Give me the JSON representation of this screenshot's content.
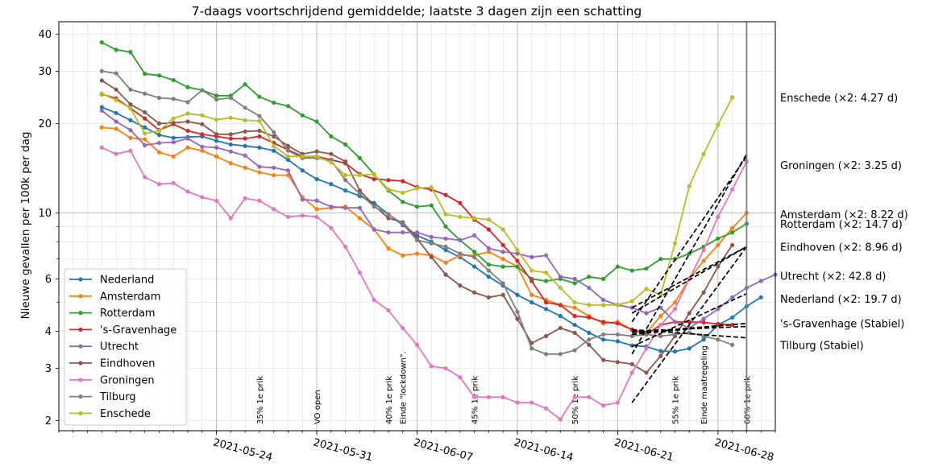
{
  "chart_data": {
    "type": "line",
    "title": "7-daags voortschrijdend gemiddelde; laatste 3 dagen zijn een schatting",
    "ylabel": "Nieuwe gevallen per 100k per dag",
    "xlabel": "",
    "yscale": "log",
    "ylim": [
      1.85,
      44
    ],
    "xlim": [
      "2021-05-13",
      "2021-07-02"
    ],
    "grid": true,
    "legend_position": "lower-left",
    "x_start": "2021-05-16",
    "y_ticks": [
      2,
      3,
      4,
      6,
      10,
      20,
      30,
      40
    ],
    "y_tick_labels": [
      "2",
      "3",
      "4",
      "6",
      "10",
      "20",
      "30",
      "40"
    ],
    "x_ticks": [
      "2021-05-24",
      "2021-05-31",
      "2021-06-07",
      "2021-06-14",
      "2021-06-21",
      "2021-06-28"
    ],
    "estimate_line": "2021-06-30",
    "series": [
      {
        "name": "Nederland",
        "color": "#1f77b4",
        "values": [
          22.7,
          21.7,
          20.5,
          19.4,
          18.3,
          17.9,
          18.0,
          18.1,
          17.5,
          17.0,
          16.8,
          16.6,
          16.2,
          15.1,
          13.9,
          13.0,
          12.5,
          11.9,
          11.4,
          10.8,
          9.9,
          9.1,
          8.4,
          8.0,
          7.5,
          7.1,
          6.6,
          6.1,
          5.7,
          5.3,
          5.0,
          4.75,
          4.5,
          4.2,
          3.95,
          3.75,
          3.7,
          3.58,
          3.55,
          3.43,
          3.42,
          3.5,
          3.75,
          4.2,
          4.45,
          4.85,
          5.2
        ]
      },
      {
        "name": "Amsterdam",
        "color": "#ff7f0e",
        "values": [
          19.4,
          19.2,
          17.9,
          17.7,
          16.0,
          15.5,
          16.6,
          16.2,
          15.5,
          14.7,
          14.2,
          13.7,
          13.4,
          13.4,
          11.3,
          10.3,
          10.4,
          10.5,
          9.6,
          8.8,
          7.6,
          7.2,
          7.3,
          7.2,
          6.8,
          7.2,
          7.2,
          7.4,
          7.0,
          6.6,
          5.3,
          5.1,
          4.9,
          4.8,
          4.5,
          4.25,
          4.3,
          4.05,
          3.95,
          4.5,
          5.0,
          6.0,
          6.9,
          7.8,
          8.9,
          10.0
        ]
      },
      {
        "name": "Rotterdam",
        "color": "#2ca02c",
        "values": [
          37.5,
          35.4,
          34.8,
          29.4,
          29.0,
          28.0,
          26.5,
          25.9,
          24.8,
          24.8,
          27.1,
          24.6,
          23.5,
          22.9,
          21.3,
          20.3,
          18.1,
          17.0,
          15.3,
          13.5,
          11.9,
          10.9,
          10.5,
          10.6,
          9.0,
          8.1,
          7.4,
          6.7,
          6.6,
          6.6,
          6.0,
          5.9,
          6.0,
          5.8,
          6.1,
          6.0,
          6.6,
          6.4,
          6.5,
          7.0,
          7.0,
          7.3,
          7.7,
          8.2,
          8.6,
          9.2
        ]
      },
      {
        "name": "'s-Gravenhage",
        "color": "#d62728",
        "values": [
          25.1,
          24.3,
          22.5,
          20.8,
          19.0,
          19.9,
          18.9,
          18.4,
          18.1,
          17.8,
          17.8,
          18.1,
          17.2,
          16.3,
          15.5,
          15.5,
          15.1,
          14.7,
          13.5,
          13.0,
          12.9,
          12.8,
          12.2,
          12.0,
          11.5,
          10.8,
          9.5,
          8.8,
          7.8,
          6.9,
          5.9,
          5.0,
          4.9,
          4.5,
          4.45,
          4.3,
          4.25,
          4.05,
          3.9,
          4.2,
          4.3,
          4.3,
          4.28,
          4.23,
          4.2
        ]
      },
      {
        "name": "Utrecht",
        "color": "#9467bd",
        "values": [
          22.1,
          20.3,
          19.0,
          16.9,
          17.2,
          17.3,
          17.8,
          16.7,
          16.6,
          16.1,
          15.6,
          14.3,
          14.2,
          13.9,
          11.1,
          11.0,
          10.5,
          10.4,
          10.4,
          8.8,
          8.6,
          8.6,
          8.6,
          8.3,
          8.2,
          8.1,
          8.4,
          7.6,
          7.4,
          7.3,
          7.1,
          7.2,
          6.1,
          6.0,
          5.6,
          5.1,
          4.9,
          4.8,
          4.6,
          4.8,
          4.3,
          4.1,
          4.4,
          4.75,
          5.2,
          5.6,
          5.9,
          6.2
        ]
      },
      {
        "name": "Eindhoven",
        "color": "#8c564b",
        "values": [
          27.9,
          26.0,
          23.2,
          21.8,
          20.0,
          20.1,
          20.3,
          19.9,
          18.4,
          18.4,
          18.8,
          18.9,
          18.1,
          16.8,
          15.8,
          16.1,
          15.8,
          14.9,
          11.9,
          10.6,
          9.6,
          9.3,
          8.2,
          7.1,
          6.2,
          5.7,
          5.4,
          5.2,
          5.3,
          4.4,
          3.65,
          3.85,
          4.1,
          3.95,
          3.6,
          3.2,
          3.15,
          3.1,
          2.9,
          3.3,
          3.85,
          4.6,
          5.4,
          6.6,
          7.8
        ]
      },
      {
        "name": "Groningen",
        "color": "#e377c2",
        "values": [
          16.6,
          15.8,
          16.2,
          13.2,
          12.5,
          12.6,
          11.8,
          11.3,
          11.0,
          9.6,
          11.2,
          11.0,
          10.3,
          9.7,
          9.8,
          9.7,
          8.9,
          7.7,
          6.3,
          5.1,
          4.7,
          4.1,
          3.6,
          3.05,
          3.0,
          2.8,
          2.4,
          2.4,
          2.4,
          2.3,
          2.3,
          2.2,
          2.02,
          2.4,
          2.4,
          2.25,
          2.3,
          2.9,
          3.5,
          4.2,
          4.75,
          6.0,
          7.5,
          9.7,
          12.0,
          14.9
        ]
      },
      {
        "name": "Tilburg",
        "color": "#7f7f7f",
        "values": [
          30.0,
          29.5,
          26.0,
          25.2,
          24.4,
          24.2,
          23.6,
          25.9,
          24.1,
          24.4,
          22.6,
          21.2,
          18.7,
          16.2,
          15.3,
          15.3,
          15.0,
          12.9,
          11.6,
          10.5,
          9.9,
          9.2,
          8.1,
          7.9,
          7.7,
          7.3,
          7.1,
          6.4,
          5.8,
          4.65,
          3.5,
          3.35,
          3.35,
          3.45,
          3.75,
          3.9,
          3.9,
          3.85,
          3.9,
          3.85,
          3.9,
          3.95,
          3.85,
          3.75,
          3.6
        ]
      },
      {
        "name": "Enschede",
        "color": "#bcbd22",
        "values": [
          25.2,
          24.0,
          22.5,
          18.5,
          18.9,
          20.8,
          21.6,
          21.3,
          20.6,
          20.9,
          20.5,
          20.4,
          16.8,
          15.5,
          15.5,
          15.5,
          14.8,
          13.4,
          13.4,
          13.5,
          12.0,
          11.7,
          12.1,
          12.2,
          9.9,
          9.7,
          9.6,
          9.5,
          8.8,
          7.5,
          6.4,
          6.3,
          5.6,
          5.0,
          4.9,
          4.9,
          4.9,
          5.05,
          5.55,
          5.3,
          7.9,
          12.3,
          15.8,
          19.8,
          24.5
        ]
      }
    ],
    "trendlines": [
      {
        "from": [
          "2021-06-22",
          4.6
        ],
        "to": [
          "2021-06-30",
          7.7
        ]
      },
      {
        "from": [
          "2021-06-22",
          4.3
        ],
        "to": [
          "2021-06-30",
          15.5
        ]
      },
      {
        "from": [
          "2021-06-22",
          3.35
        ],
        "to": [
          "2021-06-30",
          15.8
        ]
      },
      {
        "from": [
          "2021-06-22",
          2.3
        ],
        "to": [
          "2021-06-30",
          7.7
        ]
      },
      {
        "from": [
          "2021-06-22",
          4.8
        ],
        "to": [
          "2021-06-30",
          7.7
        ]
      },
      {
        "from": [
          "2021-06-22",
          3.55
        ],
        "to": [
          "2021-06-30",
          5.35
        ]
      },
      {
        "from": [
          "2021-06-22",
          3.9
        ],
        "to": [
          "2021-06-30",
          4.25
        ]
      },
      {
        "from": [
          "2021-06-22",
          4.0
        ],
        "to": [
          "2021-06-30",
          4.15
        ]
      },
      {
        "from": [
          "2021-06-22",
          4.05
        ],
        "to": [
          "2021-06-30",
          3.8
        ]
      },
      {
        "from": [
          "2021-06-22",
          3.95
        ],
        "to": [
          "2021-06-30",
          4.25
        ]
      }
    ],
    "annotations": [
      {
        "date": "2021-05-27",
        "text": "35% 1e prik"
      },
      {
        "date": "2021-05-31",
        "text": "VO open"
      },
      {
        "date": "2021-06-05",
        "text": "40% 1e prik"
      },
      {
        "date": "2021-06-06",
        "text": "Einde \"lockdown\"."
      },
      {
        "date": "2021-06-11",
        "text": "45% 1e prik"
      },
      {
        "date": "2021-06-18",
        "text": "50% 1e prik"
      },
      {
        "date": "2021-06-25",
        "text": "55% 1e prik"
      },
      {
        "date": "2021-06-27",
        "text": "Einde maatregeling"
      },
      {
        "date": "2021-06-30",
        "text": "60% 1e prik"
      }
    ],
    "right_labels": [
      {
        "text": "Enschede (×2: 4.27 d)",
        "value": 24.5
      },
      {
        "text": "Groningen (×2: 3.25 d)",
        "value": 14.5
      },
      {
        "text": "Amsterdam (×2: 8.22 d)",
        "value": 9.9
      },
      {
        "text": "Rotterdam (×2: 14.7 d)",
        "value": 9.2
      },
      {
        "text": "Eindhoven (×2: 8.96 d)",
        "value": 7.7
      },
      {
        "text": "Utrecht (×2: 42.8 d)",
        "value": 6.15
      },
      {
        "text": "Nederland (×2: 19.7 d)",
        "value": 5.15
      },
      {
        "text": "'s-Gravenhage (Stabiel)",
        "value": 4.25
      },
      {
        "text": "Tilburg (Stabiel)",
        "value": 3.6
      }
    ]
  }
}
